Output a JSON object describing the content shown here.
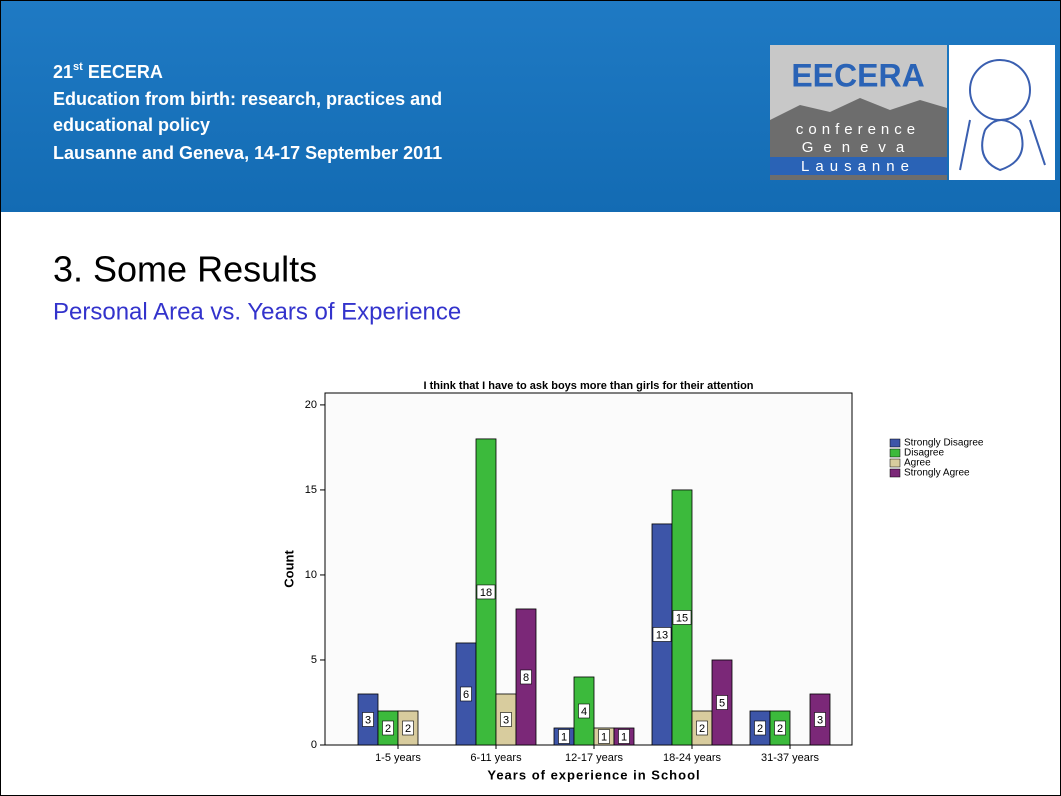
{
  "header": {
    "edition": "21",
    "edition_suffix": "st",
    "name": "EECERA",
    "lines": [
      "Education from birth: research, practices and",
      "educational policy",
      "Lausanne and Geneva, 14-17 September 2011"
    ],
    "logo": {
      "brand": "EECERA",
      "word1": "conference",
      "word2": "Geneva",
      "word3": "Lausanne"
    }
  },
  "slide": {
    "title": "3. Some Results",
    "subtitle": "Personal Area vs. Years of Experience"
  },
  "chart_data": {
    "type": "bar",
    "title": "I think that I have to ask boys more than girls for their attention",
    "xlabel": "Years of experience in School",
    "ylabel": "Count",
    "categories": [
      "1-5 years",
      "6-11 years",
      "12-17 years",
      "18-24 years",
      "31-37 years"
    ],
    "series": [
      {
        "name": "Strongly Disagree",
        "color": "#3d55a8",
        "values": [
          3,
          6,
          1,
          13,
          2
        ]
      },
      {
        "name": "Disagree",
        "color": "#3cba3c",
        "values": [
          2,
          18,
          4,
          15,
          2
        ]
      },
      {
        "name": "Agree",
        "color": "#d8cc9e",
        "values": [
          2,
          3,
          1,
          2,
          null
        ]
      },
      {
        "name": "Strongly Agree",
        "color": "#7b2878",
        "values": [
          null,
          8,
          1,
          5,
          3
        ]
      }
    ],
    "ylim": [
      0,
      20.7
    ],
    "yticks": [
      0,
      5,
      10,
      15,
      20
    ],
    "legend": "right",
    "data_labels": true
  }
}
